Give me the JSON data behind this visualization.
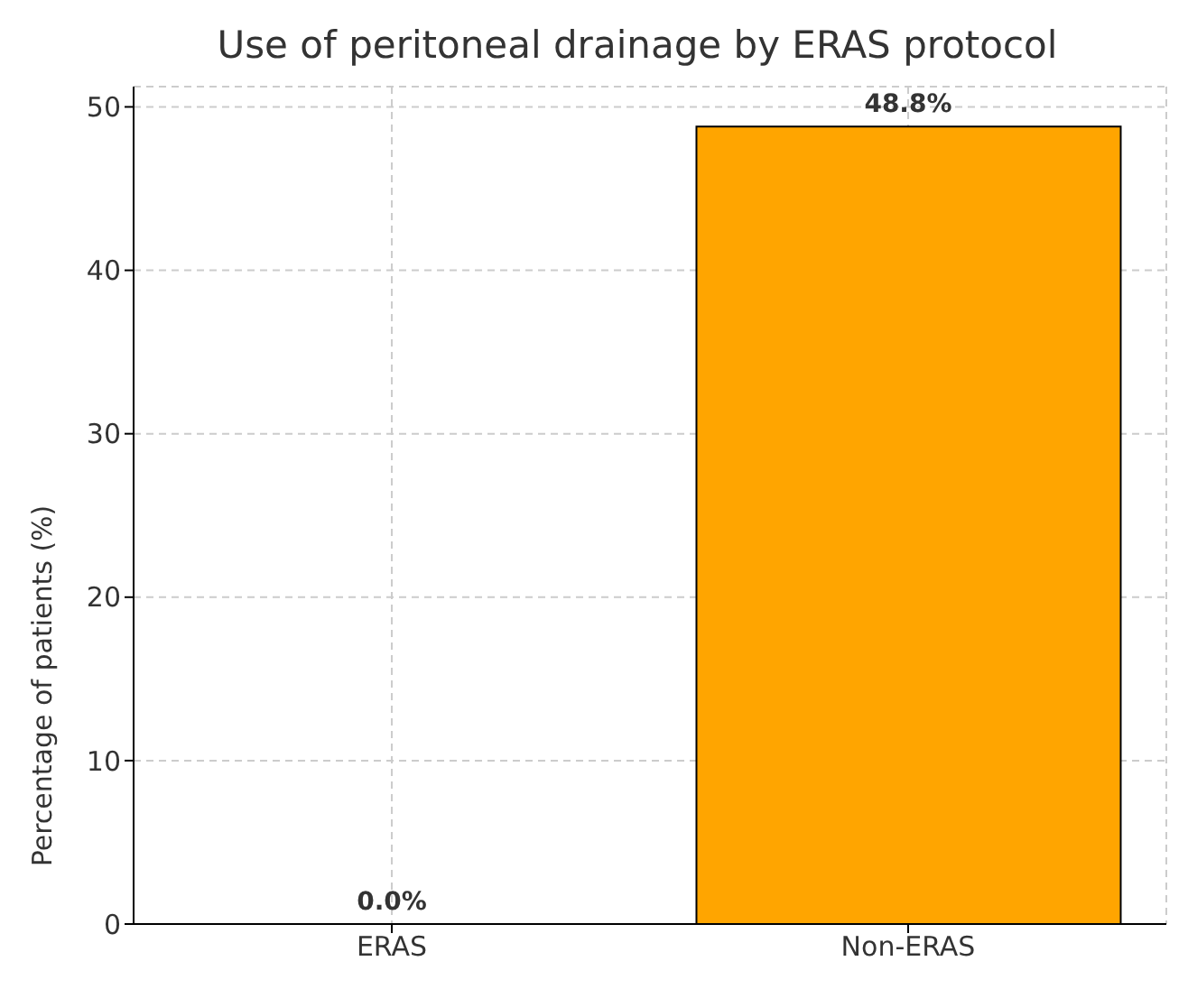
{
  "chart_data": {
    "type": "bar",
    "title": "Use of peritoneal drainage by ERAS protocol",
    "ylabel": "Percentage of patients (%)",
    "categories": [
      "ERAS",
      "Non-ERAS"
    ],
    "values": [
      0.0,
      48.8
    ],
    "color": "#ffa500",
    "value_labels": [
      "0.0%",
      "48.8%"
    ],
    "ylim": [
      0,
      51.24
    ],
    "yticks": [
      0,
      10,
      20,
      30,
      40,
      50
    ],
    "grid": true
  }
}
